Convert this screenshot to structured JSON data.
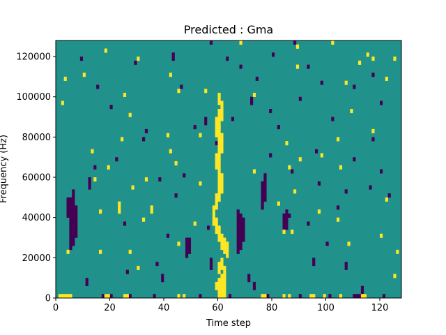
{
  "chart_data": {
    "type": "heatmap",
    "title": "Predicted : Gma",
    "xlabel": "Time step",
    "ylabel": "Frequency (Hz)",
    "xlim": [
      0,
      128
    ],
    "ylim": [
      0,
      128000
    ],
    "x_ticks": [
      0,
      20,
      40,
      60,
      80,
      100,
      120
    ],
    "y_ticks": [
      0,
      20000,
      40000,
      60000,
      80000,
      100000,
      120000
    ],
    "x_tick_labels": [
      "0",
      "20",
      "40",
      "60",
      "80",
      "100",
      "120"
    ],
    "y_tick_labels": [
      "0",
      "20000",
      "40000",
      "60000",
      "80000",
      "100000",
      "120000"
    ],
    "n_time_steps": 128,
    "n_freq_bins": 64,
    "colors": {
      "background": "#21918c",
      "low": "#440154",
      "high": "#fde725"
    },
    "value_levels": [
      -1,
      0,
      1
    ],
    "high_cells": [
      [
        60,
        0,
        4
      ],
      [
        61,
        0,
        5
      ],
      [
        62,
        0,
        5
      ],
      [
        59,
        2,
        3
      ],
      [
        60,
        6,
        8
      ],
      [
        61,
        7,
        9
      ],
      [
        62,
        5,
        7
      ],
      [
        63,
        10,
        13
      ],
      [
        62,
        11,
        14
      ],
      [
        61,
        12,
        15
      ],
      [
        60,
        14,
        17
      ],
      [
        59,
        16,
        19
      ],
      [
        58,
        18,
        22
      ],
      [
        59,
        22,
        25
      ],
      [
        60,
        24,
        28
      ],
      [
        61,
        26,
        30
      ],
      [
        60,
        28,
        33
      ],
      [
        59,
        32,
        35
      ],
      [
        60,
        34,
        38
      ],
      [
        61,
        36,
        40
      ],
      [
        60,
        38,
        42
      ],
      [
        59,
        40,
        44
      ],
      [
        60,
        42,
        46
      ],
      [
        61,
        44,
        48
      ],
      [
        60,
        48,
        50
      ],
      [
        1,
        0,
        0
      ],
      [
        2,
        0,
        0
      ],
      [
        3,
        0,
        0
      ],
      [
        4,
        0,
        0
      ],
      [
        5,
        0,
        0
      ],
      [
        18,
        0,
        0
      ],
      [
        19,
        0,
        0
      ],
      [
        25,
        0,
        0
      ],
      [
        26,
        0,
        0
      ],
      [
        45,
        0,
        0
      ],
      [
        47,
        0,
        0
      ],
      [
        76,
        0,
        0
      ],
      [
        77,
        0,
        0
      ],
      [
        84,
        0,
        0
      ],
      [
        86,
        0,
        0
      ],
      [
        94,
        0,
        0
      ],
      [
        95,
        0,
        0
      ],
      [
        99,
        0,
        0
      ],
      [
        105,
        0,
        0
      ],
      [
        113,
        0,
        0
      ],
      [
        114,
        0,
        0
      ],
      [
        30,
        7,
        7
      ],
      [
        4,
        11,
        11
      ],
      [
        16,
        11,
        11
      ],
      [
        27,
        11,
        11
      ],
      [
        126,
        11,
        11
      ],
      [
        45,
        13,
        13
      ],
      [
        120,
        15,
        15
      ],
      [
        87,
        16,
        16
      ],
      [
        51,
        18,
        18
      ],
      [
        32,
        19,
        19
      ],
      [
        16,
        21,
        21
      ],
      [
        97,
        21,
        21
      ],
      [
        35,
        21,
        22
      ],
      [
        23,
        21,
        23
      ],
      [
        122,
        24,
        24
      ],
      [
        88,
        26,
        26
      ],
      [
        28,
        27,
        27
      ],
      [
        53,
        28,
        28
      ],
      [
        33,
        29,
        29
      ],
      [
        14,
        29,
        29
      ],
      [
        86,
        32,
        32
      ],
      [
        44,
        33,
        33
      ],
      [
        90,
        34,
        34
      ],
      [
        98,
        35,
        35
      ],
      [
        13,
        36,
        36
      ],
      [
        42,
        36,
        36
      ],
      [
        85,
        38,
        38
      ],
      [
        24,
        39,
        39
      ],
      [
        53,
        40,
        40
      ],
      [
        117,
        41,
        41
      ],
      [
        27,
        45,
        45
      ],
      [
        109,
        46,
        46
      ],
      [
        2,
        48,
        48
      ],
      [
        25,
        50,
        50
      ],
      [
        107,
        53,
        53
      ],
      [
        3,
        54,
        54
      ],
      [
        42,
        55,
        55
      ],
      [
        89,
        57,
        57
      ],
      [
        115,
        60,
        60
      ],
      [
        18,
        61,
        61
      ],
      [
        89,
        62,
        62
      ],
      [
        68,
        63,
        63
      ],
      [
        102,
        63,
        63
      ],
      [
        112,
        58,
        58
      ],
      [
        30,
        59,
        59
      ],
      [
        117,
        59,
        59
      ],
      [
        122,
        54,
        54
      ],
      [
        125,
        59,
        59
      ],
      [
        84,
        16,
        16
      ],
      [
        105,
        32,
        32
      ],
      [
        104,
        39,
        39
      ],
      [
        73,
        50,
        50
      ],
      [
        55,
        51,
        51
      ],
      [
        10,
        55,
        55
      ],
      [
        19,
        32,
        32
      ],
      [
        41,
        40,
        40
      ],
      [
        45,
        51,
        51
      ],
      [
        104,
        19,
        19
      ],
      [
        73,
        31,
        31
      ],
      [
        125,
        5,
        5
      ],
      [
        108,
        13,
        13
      ],
      [
        82,
        23,
        23
      ]
    ],
    "low_cells": [
      [
        5,
        12,
        24
      ],
      [
        6,
        13,
        26
      ],
      [
        7,
        15,
        22
      ],
      [
        4,
        20,
        24
      ],
      [
        67,
        11,
        21
      ],
      [
        68,
        12,
        20
      ],
      [
        69,
        14,
        19
      ],
      [
        84,
        16,
        20
      ],
      [
        85,
        17,
        21
      ],
      [
        76,
        22,
        28
      ],
      [
        77,
        24,
        30
      ],
      [
        48,
        10,
        14
      ],
      [
        49,
        11,
        14
      ],
      [
        17,
        0,
        0
      ],
      [
        20,
        0,
        0
      ],
      [
        27,
        0,
        0
      ],
      [
        36,
        0,
        0
      ],
      [
        53,
        0,
        0
      ],
      [
        64,
        0,
        0
      ],
      [
        78,
        0,
        0
      ],
      [
        90,
        0,
        0
      ],
      [
        101,
        0,
        0
      ],
      [
        110,
        0,
        0
      ],
      [
        111,
        0,
        0
      ],
      [
        112,
        0,
        0
      ],
      [
        121,
        0,
        0
      ],
      [
        11,
        3,
        4
      ],
      [
        26,
        6,
        6
      ],
      [
        39,
        4,
        5
      ],
      [
        57,
        7,
        9
      ],
      [
        71,
        4,
        5
      ],
      [
        73,
        2,
        3
      ],
      [
        95,
        8,
        9
      ],
      [
        107,
        7,
        8
      ],
      [
        113,
        1,
        2
      ],
      [
        12,
        27,
        29
      ],
      [
        14,
        32,
        32
      ],
      [
        32,
        39,
        39
      ],
      [
        51,
        42,
        42
      ],
      [
        55,
        43,
        44
      ],
      [
        72,
        48,
        49
      ],
      [
        93,
        57,
        57
      ],
      [
        110,
        52,
        52
      ],
      [
        9,
        59,
        59
      ],
      [
        15,
        52,
        52
      ],
      [
        20,
        47,
        47
      ],
      [
        29,
        58,
        58
      ],
      [
        43,
        59,
        60
      ],
      [
        68,
        57,
        57
      ],
      [
        80,
        60,
        60
      ],
      [
        98,
        53,
        53
      ],
      [
        117,
        55,
        55
      ],
      [
        120,
        48,
        48
      ],
      [
        22,
        34,
        34
      ],
      [
        38,
        29,
        29
      ],
      [
        44,
        25,
        25
      ],
      [
        86,
        20,
        20
      ],
      [
        93,
        18,
        18
      ],
      [
        104,
        22,
        22
      ],
      [
        120,
        31,
        31
      ],
      [
        59,
        38,
        38
      ],
      [
        79,
        35,
        35
      ],
      [
        96,
        36,
        36
      ],
      [
        117,
        39,
        39
      ],
      [
        33,
        41,
        41
      ],
      [
        65,
        44,
        44
      ],
      [
        79,
        46,
        46
      ],
      [
        102,
        44,
        44
      ],
      [
        82,
        42,
        42
      ],
      [
        57,
        63,
        63
      ],
      [
        88,
        63,
        63
      ],
      [
        46,
        52,
        52
      ],
      [
        74,
        54,
        54
      ],
      [
        90,
        49,
        49
      ],
      [
        41,
        15,
        15
      ],
      [
        56,
        17,
        17
      ],
      [
        100,
        13,
        13
      ],
      [
        25,
        18,
        18
      ],
      [
        116,
        27,
        27
      ],
      [
        123,
        25,
        25
      ],
      [
        87,
        31,
        31
      ],
      [
        110,
        34,
        34
      ],
      [
        63,
        59,
        59
      ],
      [
        47,
        30,
        30
      ],
      [
        97,
        28,
        28
      ],
      [
        107,
        26,
        26
      ],
      [
        37,
        8,
        8
      ]
    ]
  }
}
